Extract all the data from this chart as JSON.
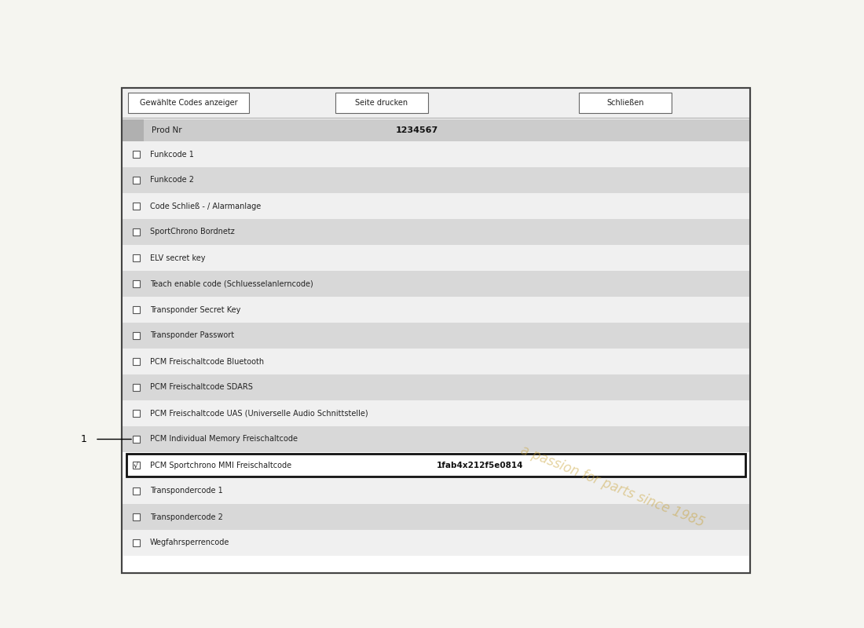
{
  "background_color": "#f5f5f0",
  "panel_facecolor": "#ffffff",
  "outer_border_color": "#444444",
  "header_bg": "#f0f0f0",
  "header_buttons": [
    "Gewählte Codes anzeiger",
    "Seite drucken",
    "Schließen"
  ],
  "prod_nr_label": "Prod Nr",
  "prod_nr_value": "1234567",
  "shaded_color": "#d8d8d8",
  "unshaded_color": "#f0f0f0",
  "rows": [
    {
      "label": "Funkcode 1",
      "value": "",
      "checked": false,
      "highlighted": false,
      "shaded": false
    },
    {
      "label": "Funkcode 2",
      "value": "",
      "checked": false,
      "highlighted": false,
      "shaded": true
    },
    {
      "label": "Code Schließ - / Alarmanlage",
      "value": "",
      "checked": false,
      "highlighted": false,
      "shaded": false
    },
    {
      "label": "SportChrono Bordnetz",
      "value": "",
      "checked": false,
      "highlighted": false,
      "shaded": true
    },
    {
      "label": "ELV secret key",
      "value": "",
      "checked": false,
      "highlighted": false,
      "shaded": false
    },
    {
      "label": "Teach enable code (Schluesselanlerncode)",
      "value": "",
      "checked": false,
      "highlighted": false,
      "shaded": true
    },
    {
      "label": "Transponder Secret Key",
      "value": "",
      "checked": false,
      "highlighted": false,
      "shaded": false
    },
    {
      "label": "Transponder Passwort",
      "value": "",
      "checked": false,
      "highlighted": false,
      "shaded": true
    },
    {
      "label": "PCM Freischaltcode Bluetooth",
      "value": "",
      "checked": false,
      "highlighted": false,
      "shaded": false
    },
    {
      "label": "PCM Freischaltcode SDARS",
      "value": "",
      "checked": false,
      "highlighted": false,
      "shaded": true
    },
    {
      "label": "PCM Freischaltcode UAS (Universelle Audio Schnittstelle)",
      "value": "",
      "checked": false,
      "highlighted": false,
      "shaded": false
    },
    {
      "label": "PCM Individual Memory Freischaltcode",
      "value": "",
      "checked": false,
      "highlighted": false,
      "shaded": true
    },
    {
      "label": "PCM Sportchrono MMI Freischaltcode",
      "value": "1fab4x212f5e0814",
      "checked": true,
      "highlighted": true,
      "shaded": false
    },
    {
      "label": "Transpondercode 1",
      "value": "",
      "checked": false,
      "highlighted": false,
      "shaded": false
    },
    {
      "label": "Transpondercode 2",
      "value": "",
      "checked": false,
      "highlighted": false,
      "shaded": true
    },
    {
      "label": "Wegfahrsperrencode",
      "value": "",
      "checked": false,
      "highlighted": false,
      "shaded": false
    }
  ],
  "callout_label": "1",
  "callout_row_index": 11,
  "font_size_row": 7.0,
  "font_size_header": 7.0,
  "font_size_prod": 7.5,
  "watermark_text": "a passion for parts since 1985",
  "watermark_color": "#c8a030",
  "watermark_alpha": 0.45,
  "watermark_rotation": -22
}
